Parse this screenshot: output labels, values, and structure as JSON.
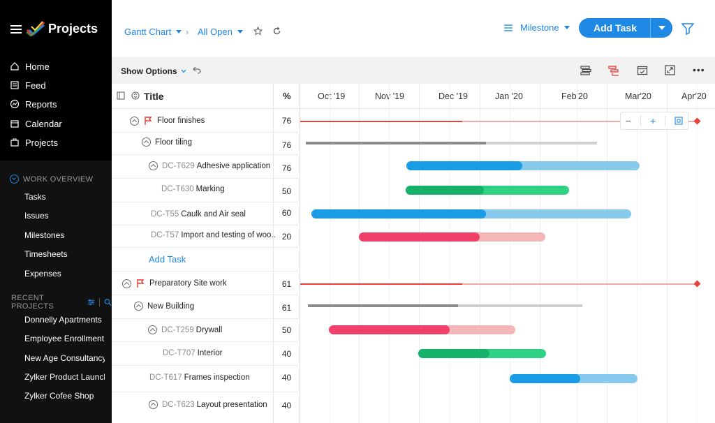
{
  "app": {
    "title": "Projects"
  },
  "nav": [
    {
      "label": "Home",
      "icon": "home-icon"
    },
    {
      "label": "Feed",
      "icon": "feed-icon"
    },
    {
      "label": "Reports",
      "icon": "reports-icon"
    },
    {
      "label": "Calendar",
      "icon": "calendar-icon"
    },
    {
      "label": "Projects",
      "icon": "projects-icon"
    }
  ],
  "work_overview": {
    "heading": "WORK OVERVIEW",
    "items": [
      "Tasks",
      "Issues",
      "Milestones",
      "Timesheets",
      "Expenses"
    ]
  },
  "recent_projects": {
    "heading": "RECENT PROJECTS",
    "items": [
      "Donnelly Apartments",
      "Employee Enrollment",
      "New Age Consultancy",
      "Zylker Product Launch",
      "Zylker Cofee Shop"
    ]
  },
  "header": {
    "view": "Gantt Chart",
    "filter": "All Open",
    "group_by": "Milestone",
    "add_task": "Add Task"
  },
  "toolbar": {
    "show_options": "Show Options"
  },
  "grid": {
    "title_col": "Title",
    "pct_col": "%",
    "months": [
      "Oct '19",
      "Nov '19",
      "Dec '19",
      "Jan '20",
      "Feb'20",
      "Mar'20",
      "Apr'20"
    ],
    "add_task": "Add Task",
    "rows": [
      {
        "code": "",
        "name": "Floor finishes",
        "pct": "76",
        "type": "milestone"
      },
      {
        "code": "",
        "name": "Floor tiling",
        "pct": "76",
        "type": "tasklist"
      },
      {
        "code": "DC-T629",
        "name": "Adhesive application",
        "pct": "76",
        "type": "task"
      },
      {
        "code": "DC-T630",
        "name": "Marking",
        "pct": "50",
        "type": "task"
      },
      {
        "code": "DC-T55",
        "name": "Caulk and Air seal",
        "pct": "60",
        "type": "task"
      },
      {
        "code": "DC-T57",
        "name": "Import and testing of woo..",
        "pct": "20",
        "type": "task"
      },
      {
        "code": "",
        "name": "Preparatory Site work",
        "pct": "61",
        "type": "milestone"
      },
      {
        "code": "",
        "name": "New Building",
        "pct": "61",
        "type": "tasklist"
      },
      {
        "code": "DC-T259",
        "name": "Drywall",
        "pct": "50",
        "type": "task"
      },
      {
        "code": "DC-T707",
        "name": "Interior",
        "pct": "40",
        "type": "task"
      },
      {
        "code": "DC-T617",
        "name": "Frames inspection",
        "pct": "40",
        "type": "task"
      },
      {
        "code": "DC-T623",
        "name": "Layout presentation",
        "pct": "40",
        "type": "task"
      }
    ]
  },
  "colors": {
    "accent": "#1e88e5",
    "blue": "#1a9be6",
    "blue_light": "#88c9ee",
    "green": "#17b26a",
    "green_light": "#2fd282",
    "red": "#f0406a",
    "red_light": "#f4b7b7",
    "milestone": "#e8403a",
    "milestone_light": "#f3a8a4",
    "gray": "#8c8c8c",
    "gray_light": "#cfcfcf"
  }
}
